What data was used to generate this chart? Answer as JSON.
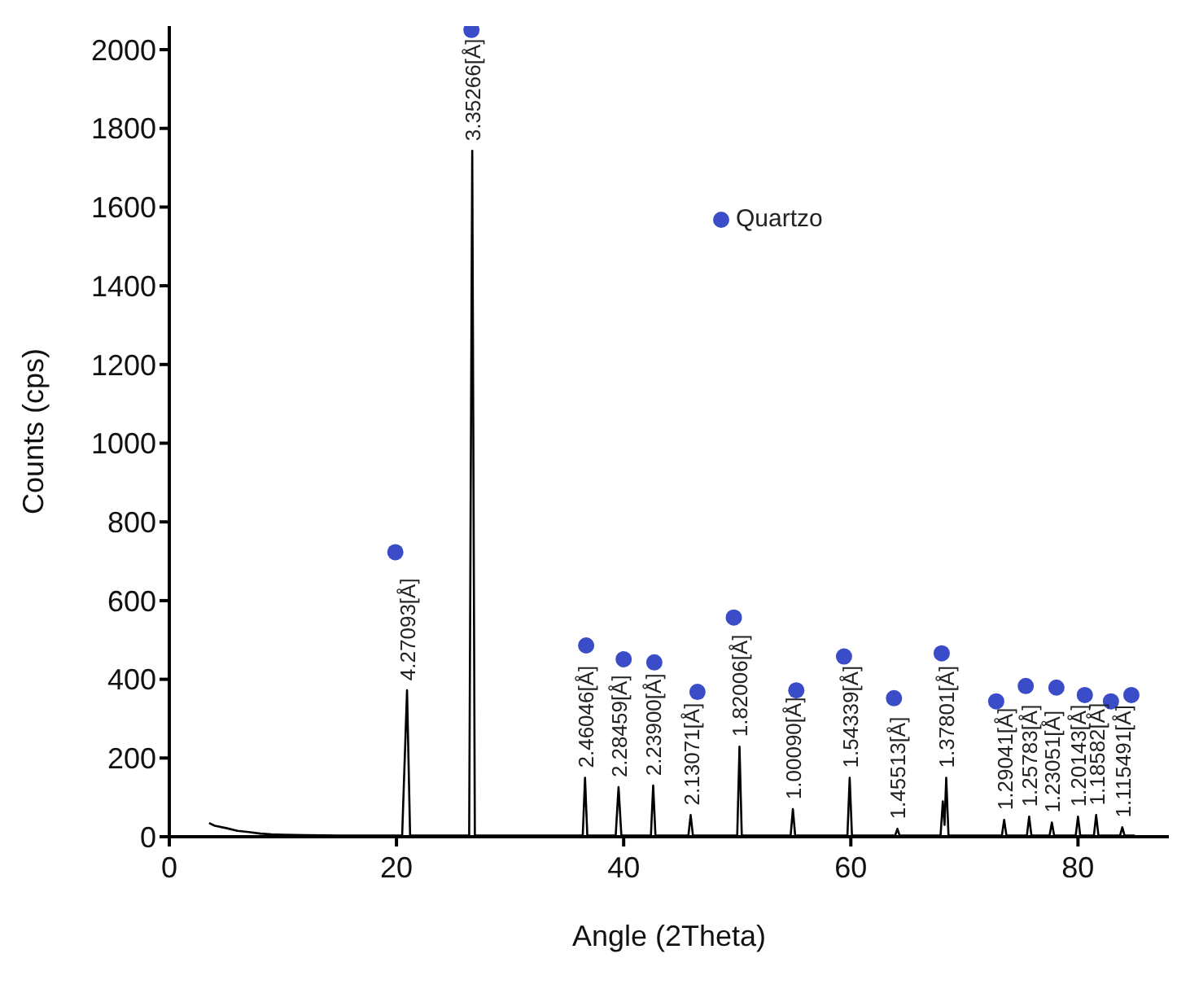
{
  "chart_data": {
    "type": "line",
    "xlabel": "Angle (2Theta)",
    "ylabel": "Counts (cps)",
    "xlim": [
      0,
      88
    ],
    "xticks": [
      0,
      20,
      40,
      60,
      80
    ],
    "ylim": [
      0,
      2060
    ],
    "yticks": [
      0,
      200,
      400,
      600,
      800,
      1000,
      1200,
      1400,
      1600,
      1800,
      2000
    ],
    "grid": false,
    "legend": "top right",
    "series": [
      {
        "color": "#000000",
        "marker": "none",
        "x": [
          3.5,
          4,
          5,
          6,
          7,
          8,
          9,
          10,
          12,
          15,
          20.5,
          20.93,
          21.2,
          26.4,
          26.67,
          26.9,
          36.4,
          36.6,
          36.8,
          39.3,
          39.55,
          39.8,
          42.4,
          42.6,
          42.8,
          45.7,
          45.9,
          46.1,
          50.0,
          50.2,
          50.4,
          54.7,
          54.9,
          55.1,
          59.7,
          59.9,
          60.1,
          63.9,
          64.1,
          64.3,
          67.9,
          68.1,
          68.25,
          68.4,
          68.6,
          73.3,
          73.5,
          73.7,
          75.5,
          75.7,
          75.9,
          77.5,
          77.7,
          77.9,
          79.8,
          80.0,
          80.2,
          81.4,
          81.6,
          81.8,
          83.7,
          83.9,
          84.1,
          85
        ],
        "values": [
          35,
          28,
          22,
          15,
          12,
          8,
          6,
          5,
          4,
          3,
          3,
          372,
          3,
          3,
          1743,
          3,
          3,
          150,
          3,
          3,
          126,
          3,
          3,
          130,
          3,
          3,
          55,
          3,
          3,
          229,
          3,
          3,
          70,
          3,
          3,
          150,
          3,
          3,
          20,
          3,
          3,
          90,
          30,
          150,
          3,
          3,
          43,
          3,
          3,
          51,
          3,
          3,
          36,
          3,
          3,
          51,
          3,
          3,
          55,
          3,
          3,
          24,
          3,
          3
        ]
      },
      {
        "type": "scatter",
        "name": "Quartzo",
        "color": "#3a4cc8",
        "marker": "circle",
        "x": [
          19.9,
          26.6,
          36.7,
          40.0,
          42.7,
          46.5,
          49.7,
          55.2,
          59.4,
          63.8,
          68.0,
          72.8,
          75.4,
          78.1,
          80.6,
          82.9,
          84.7
        ],
        "values": [
          723,
          2050,
          486,
          451,
          443,
          368,
          557,
          372,
          458,
          352,
          466,
          344,
          383,
          379,
          360,
          344,
          360
        ]
      }
    ],
    "annotations": [
      {
        "text": "4.27093[Å]",
        "x": 20.93,
        "y": 372
      },
      {
        "text": "3.35266[Å]",
        "x": 26.67,
        "y": 1743
      },
      {
        "text": "2.46046[Å]",
        "x": 36.6,
        "y": 150
      },
      {
        "text": "2.28459[Å]",
        "x": 39.55,
        "y": 126
      },
      {
        "text": "2.23900[Å]",
        "x": 42.6,
        "y": 130
      },
      {
        "text": "2.13071[Å]",
        "x": 45.9,
        "y": 55
      },
      {
        "text": "1.82006[Å]",
        "x": 50.2,
        "y": 229
      },
      {
        "text": "1.00090[Å]",
        "x": 54.9,
        "y": 70
      },
      {
        "text": "1.54339[Å]",
        "x": 59.9,
        "y": 150
      },
      {
        "text": "1.45513[Å]",
        "x": 64.1,
        "y": 20
      },
      {
        "text": "1.37801[Å]",
        "x": 68.4,
        "y": 150
      },
      {
        "text": "1.29041[Å]",
        "x": 73.5,
        "y": 43
      },
      {
        "text": "1.25783[Å]",
        "x": 75.7,
        "y": 51
      },
      {
        "text": "1.23051[Å]",
        "x": 77.7,
        "y": 36
      },
      {
        "text": "1.20143[Å]",
        "x": 80.0,
        "y": 51
      },
      {
        "text": "1.18582[Å]",
        "x": 81.6,
        "y": 55
      },
      {
        "text": "1.115491[Å]",
        "x": 83.9,
        "y": 24
      }
    ]
  }
}
